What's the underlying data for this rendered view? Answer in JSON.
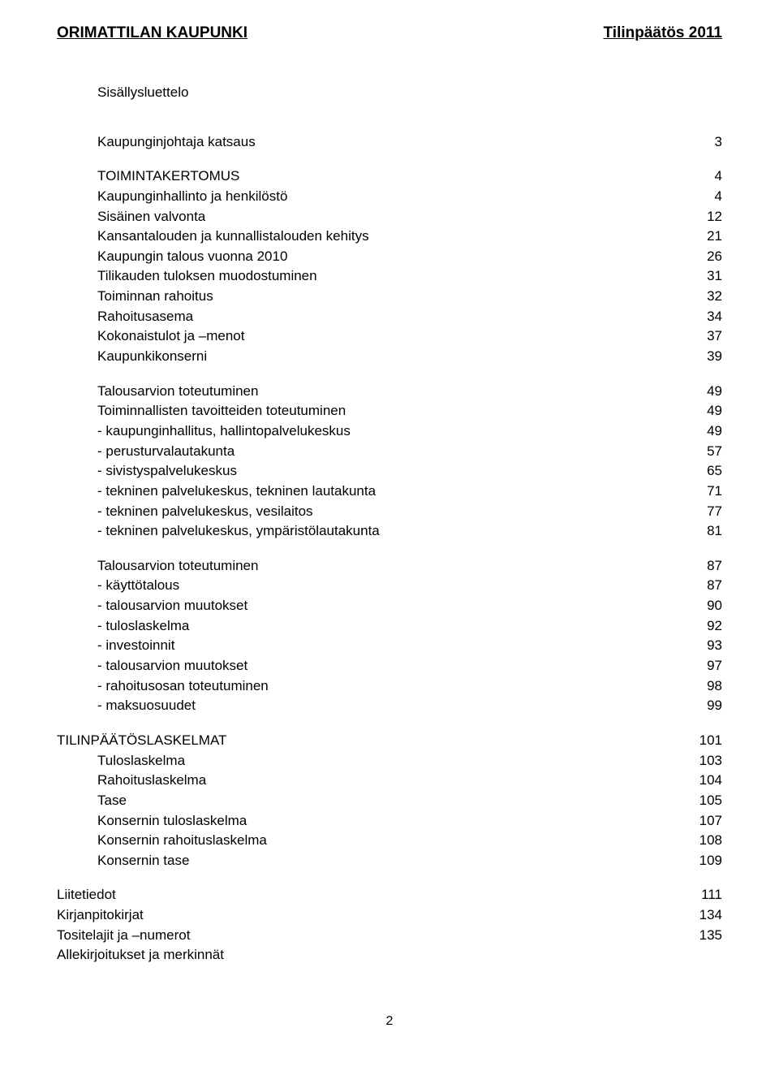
{
  "header": {
    "left": "ORIMATTILAN KAUPUNKI",
    "right": "Tilinpäätös 2011"
  },
  "toc_title": "Sisällysluettelo",
  "page_number": "2",
  "font": {
    "family": "Arial, Helvetica, sans-serif",
    "header_size_pt": 14,
    "body_size_pt": 12,
    "header_weight": "bold"
  },
  "colors": {
    "text": "#000000",
    "background": "#ffffff"
  },
  "entries": [
    {
      "label": "Kaupunginjohtaja katsaus",
      "page": "3",
      "indent": 1,
      "spacer_after": true
    },
    {
      "label": "TOIMINTAKERTOMUS",
      "page": "4",
      "indent": 1
    },
    {
      "label": "Kaupunginhallinto ja henkilöstö",
      "page": "4",
      "indent": 2
    },
    {
      "label": "Sisäinen valvonta",
      "page": "12",
      "indent": 2
    },
    {
      "label": "Kansantalouden ja kunnallistalouden kehitys",
      "page": "21",
      "indent": 2
    },
    {
      "label": "Kaupungin talous vuonna 2010",
      "page": "26",
      "indent": 2
    },
    {
      "label": "Tilikauden tuloksen muodostuminen",
      "page": "31",
      "indent": 2
    },
    {
      "label": "Toiminnan rahoitus",
      "page": "32",
      "indent": 2
    },
    {
      "label": "Rahoitusasema",
      "page": "34",
      "indent": 2
    },
    {
      "label": "Kokonaistulot ja –menot",
      "page": "37",
      "indent": 2
    },
    {
      "label": "Kaupunkikonserni",
      "page": "39",
      "indent": 2,
      "spacer_after": true
    },
    {
      "label": "Talousarvion toteutuminen",
      "page": "49",
      "indent": 2
    },
    {
      "label": "Toiminnallisten tavoitteiden toteutuminen",
      "page": "49",
      "indent": 2
    },
    {
      "label": "- kaupunginhallitus, hallintopalvelukeskus",
      "page": "49",
      "indent": 2
    },
    {
      "label": "- perusturvalautakunta",
      "page": "57",
      "indent": 2
    },
    {
      "label": "- sivistyspalvelukeskus",
      "page": "65",
      "indent": 2
    },
    {
      "label": "- tekninen palvelukeskus, tekninen lautakunta",
      "page": "71",
      "indent": 2
    },
    {
      "label": "- tekninen palvelukeskus, vesilaitos",
      "page": "77",
      "indent": 2
    },
    {
      "label": "- tekninen palvelukeskus, ympäristölautakunta",
      "page": "81",
      "indent": 2,
      "spacer_after": true
    },
    {
      "label": "Talousarvion toteutuminen",
      "page": "87",
      "indent": 2
    },
    {
      "label": "- käyttötalous",
      "page": "87",
      "indent": 2
    },
    {
      "label": "- talousarvion muutokset",
      "page": "90",
      "indent": 2
    },
    {
      "label": "- tuloslaskelma",
      "page": "92",
      "indent": 2
    },
    {
      "label": "- investoinnit",
      "page": "93",
      "indent": 2
    },
    {
      "label": "- talousarvion muutokset",
      "page": "97",
      "indent": 2
    },
    {
      "label": "- rahoitusosan toteutuminen",
      "page": "98",
      "indent": 2
    },
    {
      "label": "- maksuosuudet",
      "page": "99",
      "indent": 2,
      "spacer_after": true
    },
    {
      "label": "TILINPÄÄTÖSLASKELMAT",
      "page": "101",
      "indent": 0
    },
    {
      "label": "Tuloslaskelma",
      "page": "103",
      "indent": 1
    },
    {
      "label": "Rahoituslaskelma",
      "page": "104",
      "indent": 1
    },
    {
      "label": "Tase",
      "page": "105",
      "indent": 1
    },
    {
      "label": "Konsernin tuloslaskelma",
      "page": "107",
      "indent": 1
    },
    {
      "label": "Konsernin rahoituslaskelma",
      "page": "108",
      "indent": 1
    },
    {
      "label": "Konsernin tase",
      "page": "109",
      "indent": 1,
      "spacer_after": true
    },
    {
      "label": "Liitetiedot",
      "page": "111",
      "indent": 0
    },
    {
      "label": "Kirjanpitokirjat",
      "page": "134",
      "indent": 0
    },
    {
      "label": "Tositelajit ja –numerot",
      "page": "135",
      "indent": 0
    },
    {
      "label": "Allekirjoitukset ja merkinnät",
      "page": "",
      "indent": 0
    }
  ]
}
